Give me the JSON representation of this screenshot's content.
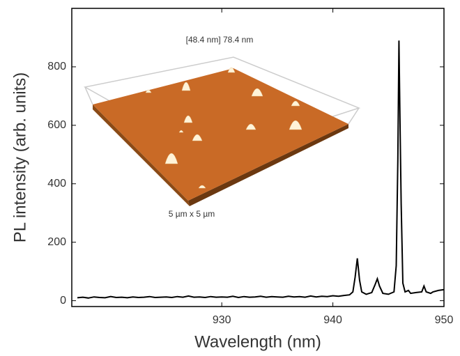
{
  "chart_data": {
    "type": "line",
    "x_label": "Wavelength (nm)",
    "y_label": "PL intensity (arb. units)",
    "inset_labels": [
      "[48.4 nm] 78.4 nm",
      "5 µm x 5 µm"
    ],
    "color": "#000000",
    "xlim": [
      916.5,
      950
    ],
    "xticks": [
      930,
      940,
      950
    ],
    "ylim": [
      -20,
      1000
    ],
    "yticks": [
      0,
      200,
      400,
      600,
      800
    ],
    "x": [
      917,
      917.5,
      918,
      918.5,
      919,
      919.5,
      920,
      920.5,
      921,
      921.5,
      922,
      922.5,
      923,
      923.5,
      924,
      924.5,
      925,
      925.5,
      926,
      926.5,
      927,
      927.5,
      928,
      928.5,
      929,
      929.5,
      930,
      930.5,
      931,
      931.5,
      932,
      932.5,
      933,
      933.5,
      934,
      934.5,
      935,
      935.5,
      936,
      936.5,
      937,
      937.5,
      938,
      938.5,
      939,
      939.5,
      940,
      940.5,
      941,
      941.5,
      941.8,
      942,
      942.2,
      942.4,
      942.6,
      943,
      943.5,
      943.8,
      944,
      944.2,
      944.5,
      945,
      945.5,
      945.7,
      945.85,
      945.95,
      946.05,
      946.15,
      946.3,
      946.5,
      946.8,
      947,
      947.5,
      948,
      948.2,
      948.4,
      948.8,
      949,
      949.5,
      950
    ],
    "values": [
      10,
      12,
      9,
      13,
      11,
      10,
      14,
      11,
      12,
      10,
      13,
      11,
      12,
      14,
      11,
      12,
      13,
      11,
      14,
      12,
      16,
      12,
      13,
      11,
      14,
      12,
      13,
      12,
      15,
      11,
      14,
      12,
      13,
      15,
      12,
      14,
      13,
      12,
      15,
      13,
      14,
      12,
      16,
      13,
      15,
      14,
      17,
      15,
      18,
      20,
      30,
      80,
      145,
      70,
      30,
      22,
      28,
      55,
      75,
      50,
      25,
      22,
      30,
      120,
      480,
      890,
      600,
      330,
      60,
      30,
      35,
      25,
      28,
      30,
      50,
      30,
      25,
      30,
      35,
      38
    ]
  }
}
